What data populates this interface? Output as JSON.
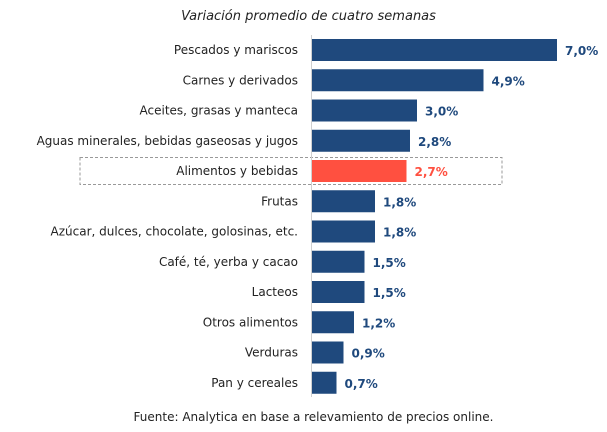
{
  "chart_data": {
    "type": "bar",
    "orientation": "horizontal",
    "title": "Variación promedio de cuatro semanas",
    "source": "Fuente: Analytica en base a relevamiento de precios online.",
    "categories": [
      "Pescados y mariscos",
      "Carnes y derivados",
      "Aceites, grasas y manteca",
      "Aguas minerales, bebidas gaseosas y jugos",
      "Alimentos y bebidas",
      "Frutas",
      "Azúcar, dulces, chocolate, golosinas, etc.",
      "Café, té, yerba y cacao",
      "Lacteos",
      "Otros alimentos",
      "Verduras",
      "Pan y cereales"
    ],
    "values": [
      7.0,
      4.9,
      3.0,
      2.8,
      2.7,
      1.8,
      1.8,
      1.5,
      1.5,
      1.2,
      0.9,
      0.7
    ],
    "labels": [
      "7,0%",
      "4,9%",
      "3,0%",
      "2,8%",
      "2,7%",
      "1,8%",
      "1,8%",
      "1,5%",
      "1,5%",
      "1,2%",
      "0,9%",
      "0,7%"
    ],
    "highlight": "Alimentos y bebidas",
    "colors": {
      "bar": "#1f497d",
      "highlight": "#ff5040",
      "axis": "#d0d0d0",
      "box": "#999999"
    },
    "xlim": [
      0,
      7.2
    ],
    "grid": false
  }
}
